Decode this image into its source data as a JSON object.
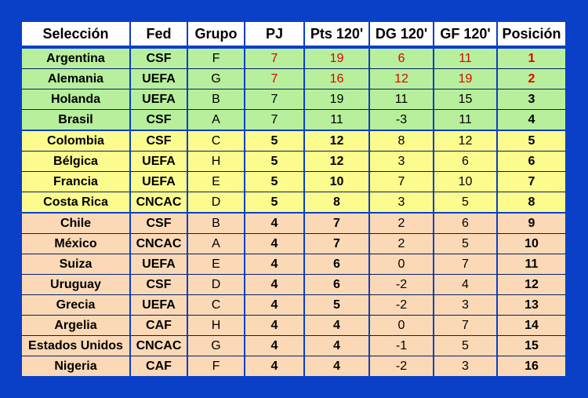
{
  "headers": [
    "Selección",
    "Fed",
    "Grupo",
    "PJ",
    "Pts 120'",
    "DG 120'",
    "GF 120'",
    "Posición"
  ],
  "colors": {
    "background": "#0a3fc8",
    "green": "#b7ef9d",
    "yellow": "#fcfc8e",
    "peach": "#fbd9b6",
    "highlight": "#e00000"
  },
  "rows": [
    {
      "group": "green",
      "cells": [
        "Argentina",
        "CSF",
        "F",
        "7",
        "19",
        "6",
        "11",
        "1"
      ],
      "red": true
    },
    {
      "group": "green",
      "cells": [
        "Alemania",
        "UEFA",
        "G",
        "7",
        "16",
        "12",
        "19",
        "2"
      ],
      "red": true
    },
    {
      "group": "green",
      "cells": [
        "Holanda",
        "UEFA",
        "B",
        "7",
        "19",
        "11",
        "15",
        "3"
      ]
    },
    {
      "group": "green",
      "cells": [
        "Brasil",
        "CSF",
        "A",
        "7",
        "11",
        "-3",
        "11",
        "4"
      ],
      "last": true
    },
    {
      "group": "yellow",
      "cells": [
        "Colombia",
        "CSF",
        "C",
        "5",
        "12",
        "8",
        "12",
        "5"
      ]
    },
    {
      "group": "yellow",
      "cells": [
        "Bélgica",
        "UEFA",
        "H",
        "5",
        "12",
        "3",
        "6",
        "6"
      ]
    },
    {
      "group": "yellow",
      "cells": [
        "Francia",
        "UEFA",
        "E",
        "5",
        "10",
        "7",
        "10",
        "7"
      ]
    },
    {
      "group": "yellow",
      "cells": [
        "Costa Rica",
        "CNCAC",
        "D",
        "5",
        "8",
        "3",
        "5",
        "8"
      ],
      "last": true
    },
    {
      "group": "peach",
      "cells": [
        "Chile",
        "CSF",
        "B",
        "4",
        "7",
        "2",
        "6",
        "9"
      ]
    },
    {
      "group": "peach",
      "cells": [
        "México",
        "CNCAC",
        "A",
        "4",
        "7",
        "2",
        "5",
        "10"
      ]
    },
    {
      "group": "peach",
      "cells": [
        "Suiza",
        "UEFA",
        "E",
        "4",
        "6",
        "0",
        "7",
        "11"
      ]
    },
    {
      "group": "peach",
      "cells": [
        "Uruguay",
        "CSF",
        "D",
        "4",
        "6",
        "-2",
        "4",
        "12"
      ]
    },
    {
      "group": "peach",
      "cells": [
        "Grecia",
        "UEFA",
        "C",
        "4",
        "5",
        "-2",
        "3",
        "13"
      ]
    },
    {
      "group": "peach",
      "cells": [
        "Argelia",
        "CAF",
        "H",
        "4",
        "4",
        "0",
        "7",
        "14"
      ]
    },
    {
      "group": "peach",
      "cells": [
        "Estados Unidos",
        "CNCAC",
        "G",
        "4",
        "4",
        "-1",
        "5",
        "15"
      ]
    },
    {
      "group": "peach",
      "cells": [
        "Nigeria",
        "CAF",
        "F",
        "4",
        "4",
        "-2",
        "3",
        "16"
      ]
    }
  ]
}
